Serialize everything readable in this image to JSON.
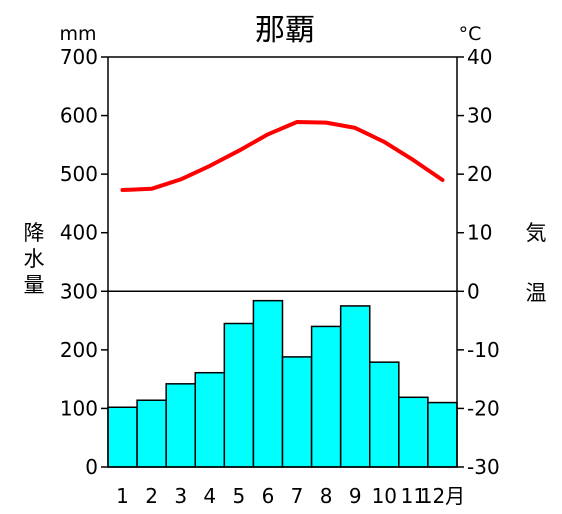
{
  "chart_data": {
    "type": "bar+line",
    "title": "那覇",
    "left_unit": "mm",
    "right_unit": "°C",
    "left_axis_label": [
      "降",
      "水",
      "量"
    ],
    "right_axis_label": [
      "気",
      "温"
    ],
    "month_suffix": "月",
    "categories": [
      "1",
      "2",
      "3",
      "4",
      "5",
      "6",
      "7",
      "8",
      "9",
      "10",
      "11",
      "12"
    ],
    "left_ticks": [
      "0",
      "100",
      "200",
      "300",
      "400",
      "500",
      "600",
      "700"
    ],
    "right_ticks": [
      "-30",
      "-20",
      "-10",
      "0",
      "10",
      "20",
      "30",
      "40"
    ],
    "ylim_left": [
      0,
      700
    ],
    "ylim_right": [
      -30,
      40
    ],
    "precipitation": {
      "values": [
        102,
        114,
        142,
        161,
        245,
        284,
        188,
        240,
        275,
        179,
        119,
        110
      ],
      "color": "#00ffff",
      "edge_color": "#000000"
    },
    "temperature": {
      "values": [
        17.3,
        17.5,
        19.1,
        21.4,
        24.0,
        26.8,
        28.9,
        28.8,
        27.9,
        25.5,
        22.4,
        19.0
      ],
      "color": "#ff0000"
    },
    "zero_line_color": "#000000"
  }
}
